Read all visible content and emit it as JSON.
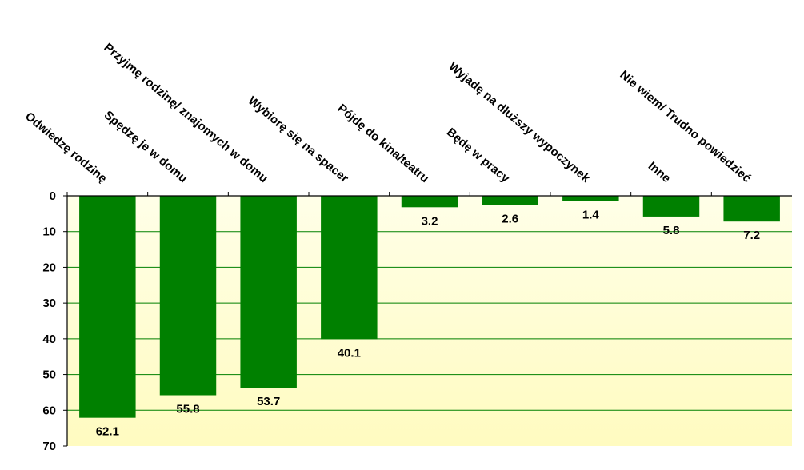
{
  "chart_data": {
    "type": "bar",
    "orientation": "vertical-inverted",
    "categories": [
      "Odwiedzę rodzinę",
      "Spędzę je w domu",
      "Przyjmę rodzinę/ znajomych w domu",
      "Wybiorę się na spacer",
      "Pójdę do kina/teatru",
      "Będę w pracy",
      "Wyjadę na dłuższy wypoczynek",
      "Inne",
      "Nie wiem/ Trudno powiedzieć"
    ],
    "values": [
      62.1,
      55.8,
      53.7,
      40.1,
      3.2,
      2.6,
      1.4,
      5.8,
      7.2
    ],
    "value_labels": [
      "62.1",
      "55.8",
      "53.7",
      "40.1",
      "3.2",
      "2.6",
      "1.4",
      "5.8",
      "7.2"
    ],
    "y_ticks": [
      "0",
      "10",
      "20",
      "30",
      "40",
      "50",
      "60",
      "70"
    ],
    "ylim": [
      0,
      70
    ],
    "grid": true,
    "bar_color": "#008000",
    "plot_background_top": "#ffffe8",
    "plot_background_bottom": "#fffbc0",
    "grid_color": "#008000",
    "title": "",
    "xlabel": "",
    "ylabel": ""
  }
}
